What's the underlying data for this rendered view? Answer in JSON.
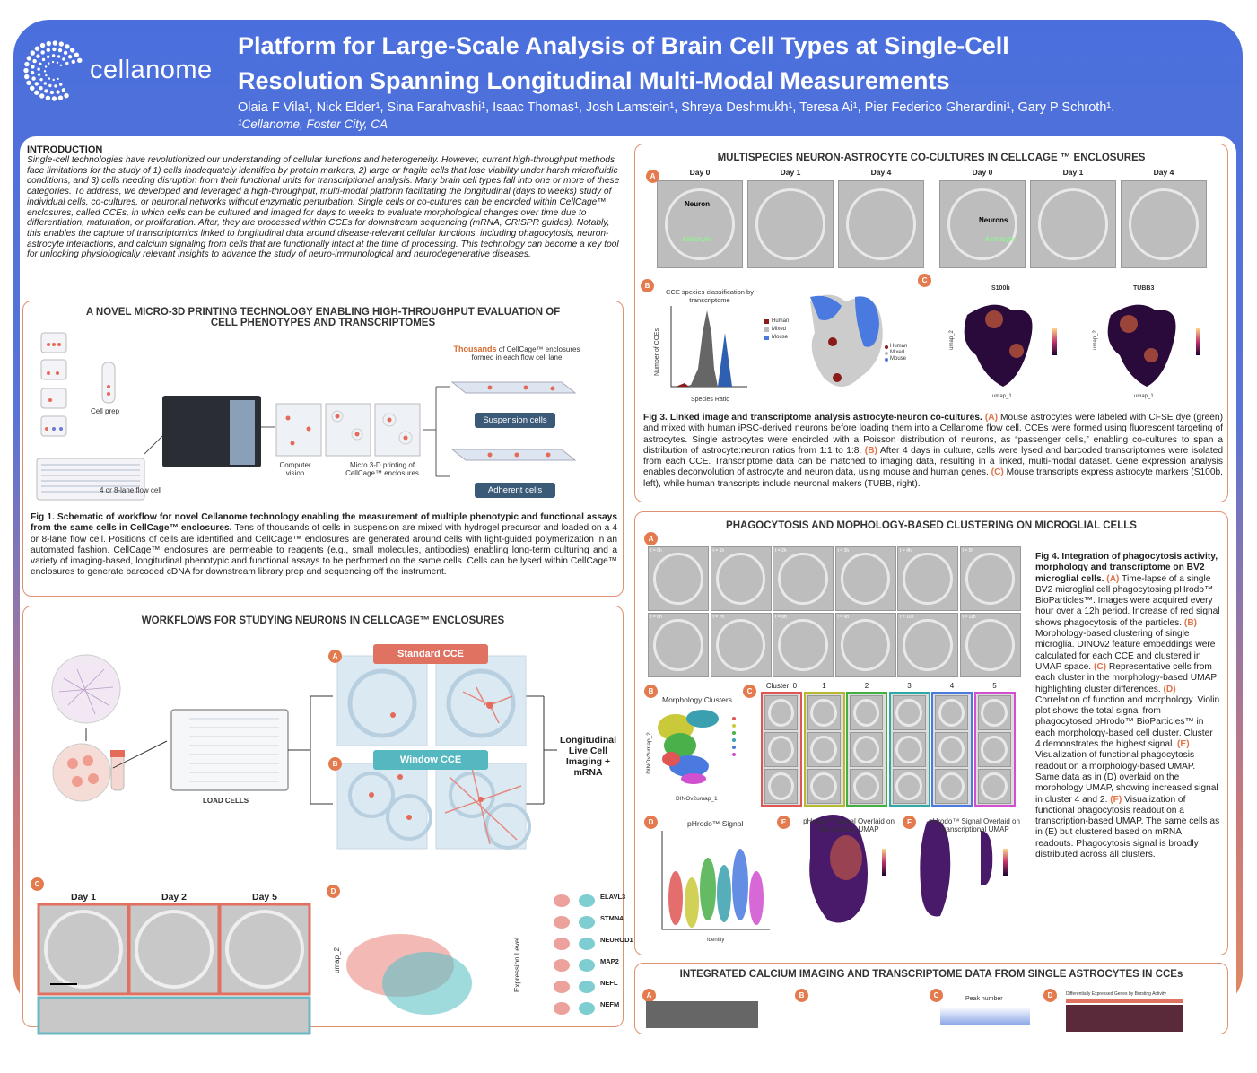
{
  "header": {
    "brand": "cellanome",
    "title_lines": [
      "Platform for Large-Scale Analysis of Brain Cell Types at Single-Cell",
      "Resolution Spanning Longitudinal Multi-Modal Measurements"
    ],
    "authors": "Olaia F Vila¹, Nick Elder¹, Sina Farahvashi¹, Isaac Thomas¹, Josh Lamstein¹, Shreya Deshmukh¹, Teresa Ai¹, Pier Federico Gherardini¹, Gary P Schroth¹.",
    "affiliation": "¹Cellanome, Foster City, CA"
  },
  "introduction": {
    "heading": "INTRODUCTION",
    "text": "Single-cell technologies have revolutionized our understanding of cellular functions and heterogeneity. However, current high-throughput methods face limitations for the study of 1) cells inadequately identified by protein markers, 2) large or fragile cells that lose viability under harsh microfluidic conditions, and 3) cells needing disruption from their functional units for transcriptional analysis. Many brain cell types fall into one or more of these categories. To address, we developed and leveraged a high-throughput, multi-modal platform facilitating the longitudinal (days to weeks) study of individual cells, co-cultures, or neuronal networks without enzymatic perturbation. Single cells or co-cultures can be encircled within CellCage™ enclosures, called CCEs, in which cells can be cultured and imaged for days to weeks to evaluate morphological changes over time due to differentiation, maturation, or proliferation. After, they are processed within CCEs for downstream sequencing (mRNA, CRISPR guides). Notably, this enables the capture of transcriptomics linked to longitudinal data around disease-relevant cellular functions, including phagocytosis, neuron-astrocyte interactions, and calcium signaling from cells that are functionally intact at the time of processing. This technology can become a key tool for unlocking physiologically relevant insights to advance the study of neuro-immunological and neurodegenerative diseases."
  },
  "fig1": {
    "heading": "A NOVEL MICRO-3D PRINTING TECHNOLOGY ENABLING HIGH-THROUGHPUT EVALUATION OF CELL PHENOTYPES AND TRANSCRIPTOMES",
    "cell_prep": "Cell prep",
    "flow_cell": "4 or 8-lane flow cell",
    "computer_vision": "Computer vision",
    "printing": "Micro 3-D printing of CellCage™ enclosures",
    "thousands": "Thousands",
    "thousands_rest": " of CellCage™ enclosures formed in each flow cell lane",
    "suspension": "Suspension cells",
    "adherent": "Adherent cells",
    "caption": {
      "title": "Fig 1. Schematic of workflow for novel Cellanome technology enabling the measurement of multiple phenotypic and functional assays from the same cells in CellCage™ enclosures.",
      "parts": [
        " Tens of thousands of cells in suspension are mixed with hydrogel precursor and loaded on a 4 or 8-lane flow cell. Positions of cells are identified and CellCage™ enclosures are generated around cells with light-guided polymerization in an automated fashion. CellCage™ enclosures are permeable to reagents (e.g., small molecules, antibodies) enabling long-term culturing and a variety of imaging-based, longitudinal phenotypic and functional assays to be performed on the same cells. Cells can be lysed within CellCage™ enclosures to generate barcoded cDNA for downstream library prep and sequencing off the instrument."
      ]
    }
  },
  "workflow": {
    "heading": "WORKFLOWS FOR STUDYING NEURONS IN CELLCAGE™ ENCLOSURES",
    "panels": [
      "A",
      "B",
      "C",
      "D"
    ],
    "standard": "Standard CCE",
    "window": "Window CCE",
    "load": "LOAD CELLS",
    "imaging": "Longitudinal Live Cell Imaging + mRNA",
    "days": [
      "Day 1",
      "Day 2",
      "Day 5"
    ],
    "umap_axis": "umap_2",
    "expression_axis": "Expression Level",
    "genes": [
      "ELAVL3",
      "STMN4",
      "NEUROD1",
      "MAP2",
      "NEFL",
      "NEFM"
    ]
  },
  "fig3": {
    "heading": "MULTISPECIES NEURON-ASTROCYTE CO-CULTURES IN CELLCAGE ™ ENCLOSURES",
    "panels": [
      "A",
      "B",
      "C"
    ],
    "days": [
      "Day 0",
      "Day 1",
      "Day 4",
      "Day 0",
      "Day 1",
      "Day 4"
    ],
    "neuron": "Neuron",
    "neurons": "Neurons",
    "astrocyte": "Astrocyte",
    "hist_title": "CCE species classification by transcriptome",
    "hist_x": "Species Ratio",
    "hist_y": "Number of CCEs",
    "legend": [
      "Human",
      "Mixed",
      "Mouse"
    ],
    "genes": [
      "S100b",
      "TUBB3"
    ],
    "umap_x": "umap_1",
    "umap_y": "umap_2",
    "caption": {
      "title": "Fig 3. Linked image and transcriptome analysis astrocyte-neuron co-cultures.",
      "parts": [
        " ",
        "(A)",
        " Mouse astrocytes were labeled with CFSE dye (green) and mixed with human iPSC-derived neurons before loading them into a Cellanome flow cell. CCEs were formed using fluorescent targeting of astrocytes. Single astrocytes were encircled with a Poisson distribution of neurons, as “passenger cells,” enabling co-cultures to span a distribution of astrocyte:neuron ratios from 1:1 to 1:8. ",
        "(B)",
        " After 4 days in culture, cells were lysed and barcoded transcriptomes were isolated from each CCE. Transcriptome data can be matched to imaging data, resulting in a linked, multi-modal dataset. Gene expression analysis enables deconvolution of astrocyte and neuron data, using mouse and human genes. ",
        "(C)",
        " Mouse transcripts express astrocyte markers (S100b, left), while human transcripts include neuronal makers (TUBB, right)."
      ]
    }
  },
  "fig4": {
    "heading": "PHAGOCYTOSIS AND MOPHOLOGY-BASED CLUSTERING ON MICROGLIAL CELLS",
    "panels": [
      "A",
      "B",
      "C",
      "D",
      "E",
      "F"
    ],
    "timepoints": [
      "t = 0h",
      "t = 1h",
      "t = 2h",
      "t = 3h",
      "t = 4h",
      "t = 5h",
      "t = 6h",
      "t = 7h",
      "t = 8h",
      "t = 9h",
      "t = 10h",
      "t = 11h"
    ],
    "morph_title": "Morphology Clusters",
    "morph_x": "DINOv2umap_1",
    "morph_y": "DINOv2umap_2",
    "clusters": [
      "Cluster: 0",
      "1",
      "2",
      "3",
      "4",
      "5"
    ],
    "violin_title": "pHrodo™ Signal",
    "violin_x": "Identity",
    "overlay_morph": "pHrodo™ Signal Overlaid on Morphology UMAP",
    "overlay_tx": "pHrodo™ Signal Overlaid on Transcriptional UMAP",
    "caption": {
      "title": "Fig 4. Integration of phagocytosis activity, morphology and transcriptome on BV2 microglial cells.",
      "parts": [
        " ",
        "(A)",
        " Time-lapse of a single BV2 microglial cell phagocytosing pHrodo™ BioParticles™. Images were acquired every hour over a 12h period. Increase of red signal shows phagocytosis of the particles. ",
        "(B)",
        " Morphology-based clustering of single microglia. DINOv2 feature embeddings were calculated for each CCE and clustered in UMAP space. ",
        "(C)",
        " Representative cells from each cluster in the morphology-based UMAP highlighting cluster differences. ",
        "(D)",
        " Correlation of function and morphology. Violin plot shows the total signal from phagocytosed pHrodo™ BioParticles™ in each morphology-based cell cluster. Cluster 4 demonstrates the highest signal. ",
        "(E)",
        " Visualization of functional phagocytosis readout on a morphology-based UMAP. Same data as in (D) overlaid on the morphology UMAP, showing increased signal in cluster 4 and 2. ",
        "(F)",
        " Visualization of functional phagocytosis readout on a transcription-based UMAP. The same cells as in (E) but clustered based on mRNA readouts. Phagocytosis signal is broadly distributed across all clusters."
      ]
    }
  },
  "calcium": {
    "heading": "INTEGRATED CALCIUM IMAGING AND TRANSCRIPTOME DATA FROM SINGLE ASTROCYTES IN CCEs",
    "panels": [
      "A",
      "B",
      "C",
      "D"
    ],
    "peak": "Peak number",
    "deg": "Differentially Expressed Genes by Bursting Activity"
  }
}
